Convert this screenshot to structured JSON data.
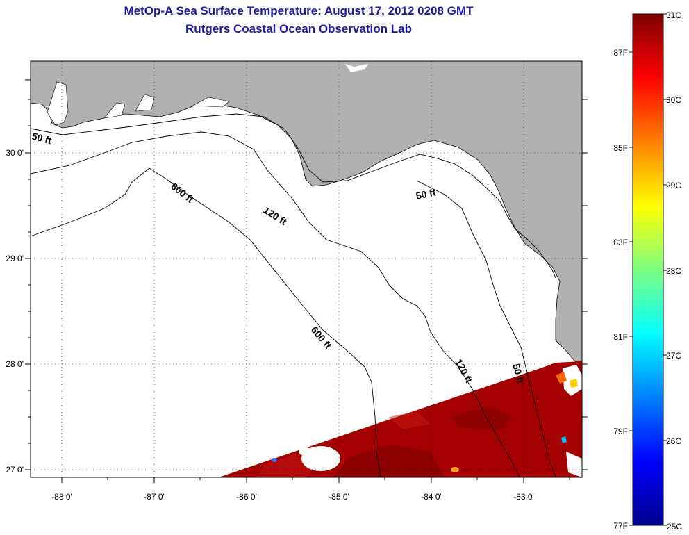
{
  "header": {
    "title": "MetOp-A Sea Surface Temperature:  August 17, 2012 0208 GMT",
    "subtitle": "Rutgers Coastal Ocean Observation Lab"
  },
  "map": {
    "lon_ticks": [
      "-88 0'",
      "-87 0'",
      "-86 0'",
      "-85 0'",
      "-84 0'",
      "-83 0'"
    ],
    "lat_ticks": [
      "30 0'",
      "29 0'",
      "28 0'",
      "27 0'"
    ],
    "contours": [
      "50 ft",
      "600 ft",
      "120 ft",
      "50 ft",
      "600 ft",
      "120 ft",
      "50 ft"
    ],
    "colors": {
      "land": "#b0b0b0",
      "sea": "#ffffff",
      "sst_warm": "#a00000",
      "contour": "#000000"
    }
  },
  "colorbar": {
    "celsius_labels": [
      "31C",
      "30C",
      "29C",
      "28C",
      "27C",
      "26C",
      "25C"
    ],
    "fahrenheit_labels": [
      "87F",
      "85F",
      "83F",
      "81F",
      "79F",
      "77F"
    ],
    "range_c": [
      25,
      31
    ],
    "colormap": "jet"
  }
}
